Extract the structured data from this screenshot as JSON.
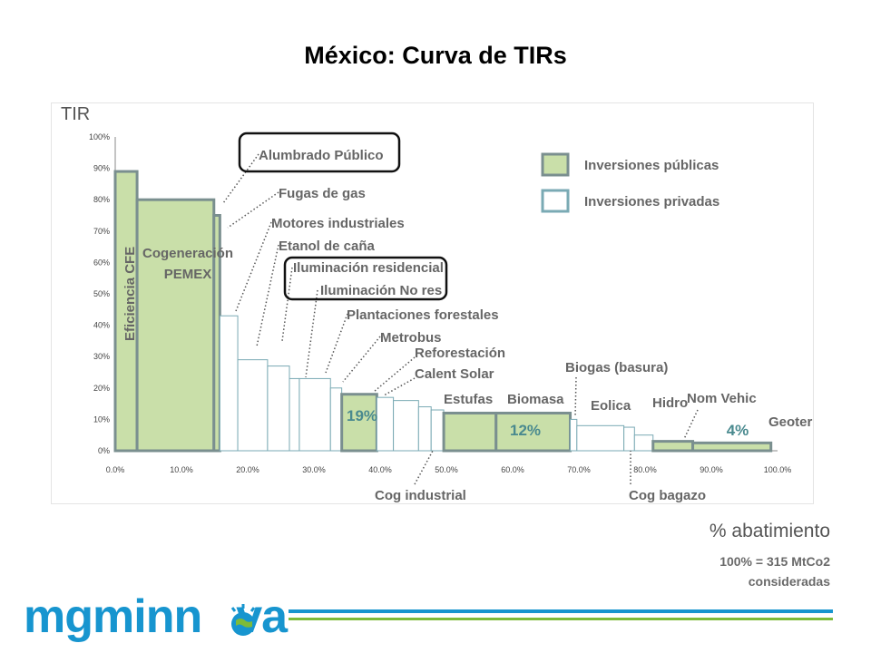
{
  "slide": {
    "title": "México: Curva de TIRs",
    "xaxis_label": "% abatimiento",
    "xaxis_note_line1": "100% = 315 MtCo2",
    "xaxis_note_line2": "consideradas",
    "logo_text_a": "mgm",
    "logo_text_b": "inn",
    "logo_text_c": "va"
  },
  "colors": {
    "public_fill": "#c9dfa9",
    "public_stroke": "#7a8f8f",
    "private_stroke": "#7aaab4",
    "callout_box": "#111111",
    "brand_blue": "#1795cf",
    "brand_green": "#7dbb3a"
  },
  "chart_data": {
    "type": "bar",
    "subtype": "variable-width step bar (marginal curve)",
    "title": "",
    "ylabel": "TIR",
    "xlabel": "% abatimiento",
    "xlim": [
      0,
      100
    ],
    "ylim": [
      0,
      100
    ],
    "xticks": [
      "0.0%",
      "10.0%",
      "20.0%",
      "30.0%",
      "40.0%",
      "50.0%",
      "60.0%",
      "70.0%",
      "80.0%",
      "90.0%",
      "100.0%"
    ],
    "yticks": [
      "0%",
      "10%",
      "20%",
      "30%",
      "40%",
      "50%",
      "60%",
      "70%",
      "80%",
      "90%",
      "100%"
    ],
    "grid": false,
    "legend": {
      "position": "top-right",
      "items": [
        {
          "label": "Inversiones públicas",
          "type": "public"
        },
        {
          "label": "Inversiones privadas",
          "type": "private"
        }
      ]
    },
    "bars": [
      {
        "x0": 0.0,
        "x1": 3.3,
        "y": 89,
        "type": "public"
      },
      {
        "x0": 3.3,
        "x1": 14.9,
        "y": 80,
        "type": "public"
      },
      {
        "x0": 14.9,
        "x1": 15.8,
        "y": 75,
        "type": "public"
      },
      {
        "x0": 15.8,
        "x1": 18.5,
        "y": 43,
        "type": "private"
      },
      {
        "x0": 18.5,
        "x1": 23.0,
        "y": 29,
        "type": "private"
      },
      {
        "x0": 23.0,
        "x1": 26.3,
        "y": 27,
        "type": "private"
      },
      {
        "x0": 26.3,
        "x1": 27.8,
        "y": 23,
        "type": "private"
      },
      {
        "x0": 27.8,
        "x1": 32.5,
        "y": 23,
        "type": "private"
      },
      {
        "x0": 32.5,
        "x1": 34.2,
        "y": 20,
        "type": "private"
      },
      {
        "x0": 34.2,
        "x1": 39.5,
        "y": 18,
        "type": "public"
      },
      {
        "x0": 39.5,
        "x1": 42.0,
        "y": 17,
        "type": "private"
      },
      {
        "x0": 42.0,
        "x1": 45.8,
        "y": 16,
        "type": "private"
      },
      {
        "x0": 45.8,
        "x1": 47.7,
        "y": 14,
        "type": "private"
      },
      {
        "x0": 47.7,
        "x1": 49.6,
        "y": 13,
        "type": "private"
      },
      {
        "x0": 49.6,
        "x1": 57.5,
        "y": 12,
        "type": "public"
      },
      {
        "x0": 57.5,
        "x1": 68.7,
        "y": 12,
        "type": "public"
      },
      {
        "x0": 68.7,
        "x1": 69.7,
        "y": 10,
        "type": "private"
      },
      {
        "x0": 69.7,
        "x1": 76.8,
        "y": 8,
        "type": "private"
      },
      {
        "x0": 76.8,
        "x1": 78.4,
        "y": 7.5,
        "type": "private"
      },
      {
        "x0": 78.4,
        "x1": 81.2,
        "y": 5,
        "type": "private"
      },
      {
        "x0": 81.2,
        "x1": 87.2,
        "y": 3,
        "type": "public"
      },
      {
        "x0": 87.2,
        "x1": 99.0,
        "y": 2.5,
        "type": "public"
      }
    ],
    "annotations": [
      {
        "text": "Alumbrado Público",
        "boxed": true
      },
      {
        "text": "Fugas de gas"
      },
      {
        "text": "Motores industriales"
      },
      {
        "text": "Etanol de caña"
      },
      {
        "text": "Iluminación residencial",
        "boxed_group": "iluminacion"
      },
      {
        "text": "Iluminación No res",
        "boxed_group": "iluminacion"
      },
      {
        "text": "Plantaciones forestales"
      },
      {
        "text": "Metrobus"
      },
      {
        "text": "Reforestación"
      },
      {
        "text": "Calent Solar"
      },
      {
        "text": "Estufas"
      },
      {
        "text": "Biomasa"
      },
      {
        "text": "Biogas (basura)"
      },
      {
        "text": "Eolica"
      },
      {
        "text": "Hidro"
      },
      {
        "text": "Nom Vehic"
      },
      {
        "text": "Geotermia"
      },
      {
        "text": "Cog industrial"
      },
      {
        "text": "Cog bagazo"
      },
      {
        "text": "Eficiencia CFE",
        "rotated": true
      },
      {
        "text": "Cogeneración PEMEX"
      }
    ],
    "bar_labels": [
      {
        "text": "19%"
      },
      {
        "text": "12%"
      },
      {
        "text": "4%"
      }
    ]
  }
}
